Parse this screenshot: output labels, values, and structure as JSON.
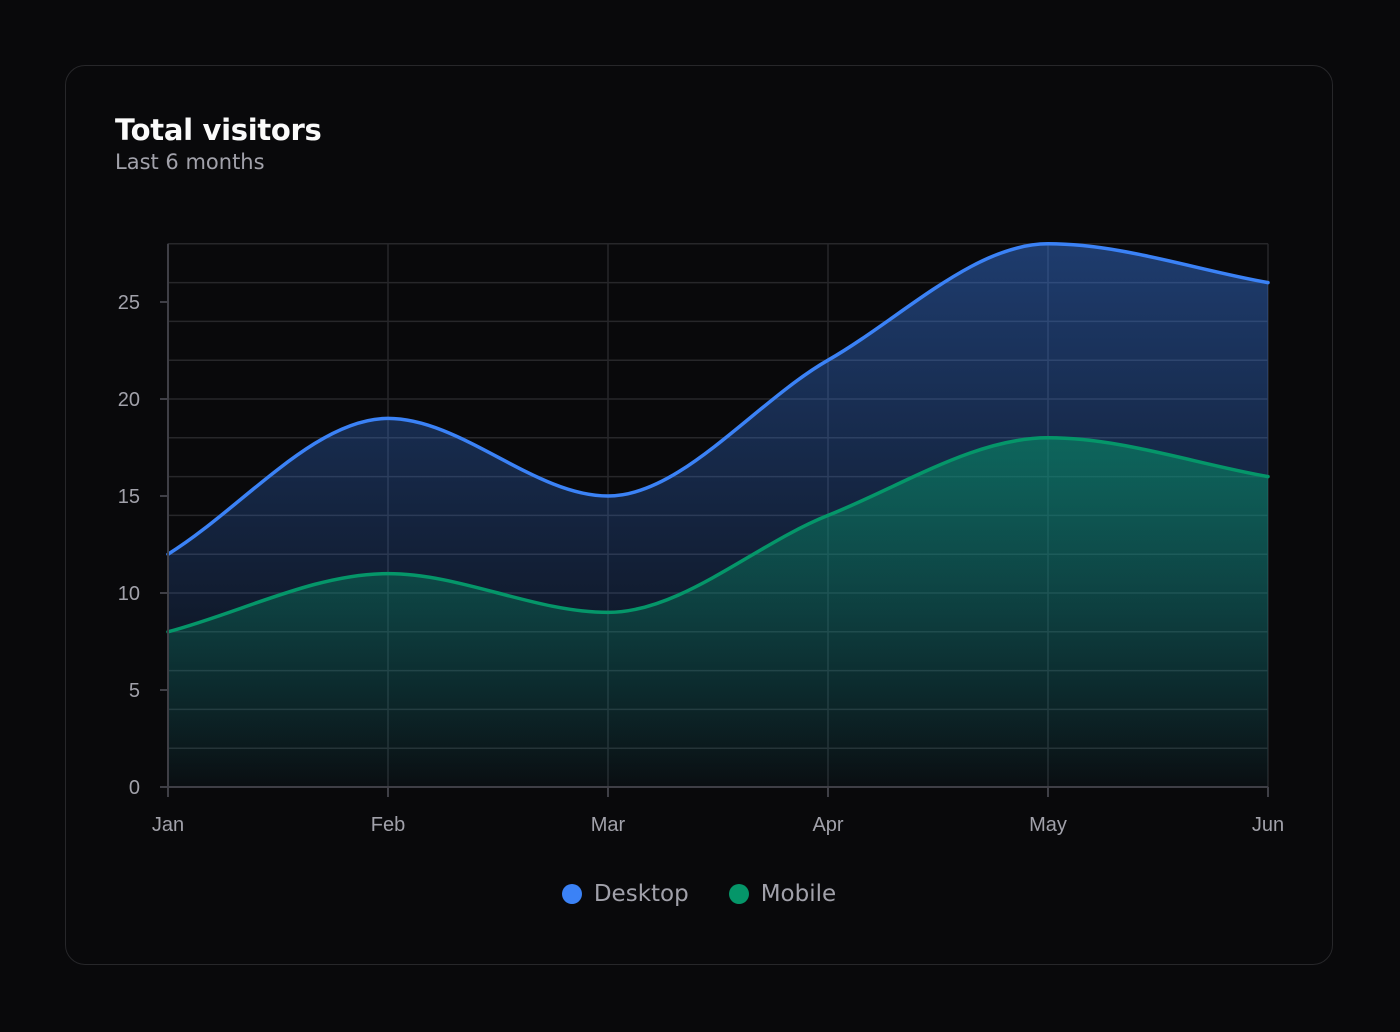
{
  "card": {
    "title": "Total visitors",
    "subtitle": "Last 6 months"
  },
  "chart_data": {
    "type": "area",
    "title": "Total visitors",
    "subtitle": "Last 6 months",
    "xlabel": "",
    "ylabel": "",
    "categories": [
      "Jan",
      "Feb",
      "Mar",
      "Apr",
      "May",
      "Jun"
    ],
    "series": [
      {
        "name": "Desktop",
        "values": [
          12,
          19,
          15,
          22,
          28,
          26
        ],
        "color": "#3b82f6"
      },
      {
        "name": "Mobile",
        "values": [
          8,
          11,
          9,
          14,
          18,
          16
        ],
        "color": "#059669"
      }
    ],
    "ylim": [
      0,
      28
    ],
    "yticks": [
      0,
      5,
      10,
      15,
      20,
      25
    ],
    "grid": true,
    "legend_position": "bottom",
    "curve": "smooth",
    "stacked": false
  },
  "legend": [
    {
      "label": "Desktop",
      "color": "#3b82f6"
    },
    {
      "label": "Mobile",
      "color": "#059669"
    }
  ]
}
